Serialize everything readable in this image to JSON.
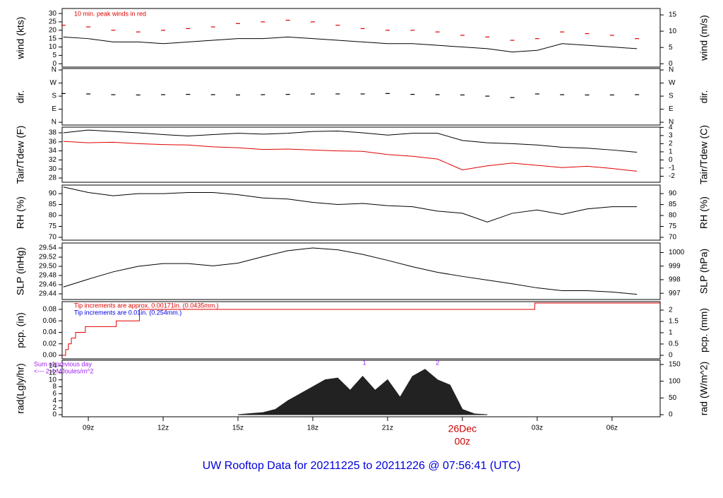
{
  "title": "UW Rooftop Data for 20211225  to  20211226 @ 07:56:41  (UTC)",
  "xaxis": {
    "xlim": [
      7.95,
      31.93
    ],
    "xticks": [
      {
        "value": 9,
        "label": "09z"
      },
      {
        "value": 12,
        "label": "12z"
      },
      {
        "value": 15,
        "label": "15z"
      },
      {
        "value": 18,
        "label": "18z"
      },
      {
        "value": 21,
        "label": "21z"
      },
      {
        "value": 24,
        "label": "00z"
      },
      {
        "value": 27,
        "label": "03z"
      },
      {
        "value": 30,
        "label": "06z"
      }
    ],
    "date_label": "26Dec"
  },
  "chart_data": [
    {
      "type": "line",
      "ylabel": "wind (kts)",
      "y2label": "wind (m/s)",
      "annotation": "10 min. peak winds in red",
      "ylim": [
        -2,
        33
      ],
      "yticks": [
        0,
        5,
        10,
        15,
        20,
        25,
        30
      ],
      "y2lim": [
        -1.03,
        16.97
      ],
      "y2ticks": [
        0,
        5,
        10,
        15
      ],
      "x": [
        8,
        9,
        10,
        11,
        12,
        13,
        14,
        15,
        16,
        17,
        18,
        19,
        20,
        21,
        22,
        23,
        24,
        25,
        26,
        27,
        28,
        29,
        30,
        31
      ],
      "series": [
        {
          "name": "wind",
          "color": "#000000",
          "style": "line",
          "values": [
            16,
            15,
            13,
            13,
            12,
            13,
            14,
            15,
            15,
            16,
            15,
            14,
            13,
            12,
            12,
            11,
            10,
            9,
            7,
            8,
            12,
            11,
            10,
            9
          ]
        },
        {
          "name": "peak",
          "color": "#e00000",
          "style": "dash-points",
          "values": [
            23,
            22,
            20,
            19,
            20,
            21,
            22,
            24,
            25,
            26,
            25,
            23,
            21,
            20,
            20,
            19,
            17,
            16,
            14,
            15,
            19,
            18,
            17,
            15
          ]
        }
      ]
    },
    {
      "type": "line",
      "ylabel": "dir.",
      "y2label": "dir.",
      "ylim": [
        -19,
        370
      ],
      "yticks": [
        {
          "value": 0,
          "label": "N"
        },
        {
          "value": 90,
          "label": "E"
        },
        {
          "value": 180,
          "label": "S"
        },
        {
          "value": 270,
          "label": "W"
        },
        {
          "value": 360,
          "label": "N"
        }
      ],
      "x": [
        8,
        9,
        10,
        11,
        12,
        13,
        14,
        15,
        16,
        17,
        18,
        19,
        20,
        21,
        22,
        23,
        24,
        25,
        26,
        27,
        28,
        29,
        30,
        31
      ],
      "series": [
        {
          "name": "dir",
          "color": "#000000",
          "style": "dash-points",
          "values": [
            198,
            195,
            190,
            188,
            190,
            192,
            190,
            188,
            190,
            192,
            195,
            195,
            195,
            198,
            192,
            190,
            188,
            180,
            170,
            195,
            190,
            188,
            188,
            190
          ]
        }
      ]
    },
    {
      "type": "line",
      "ylabel": "Tair/Tdew (F)",
      "y2label": "Tair/Tdew (C)",
      "ylim": [
        27.06,
        39.25
      ],
      "yticks": [
        28,
        30,
        32,
        34,
        36,
        38
      ],
      "y2lim": [
        -2.74,
        4.03
      ],
      "y2ticks": [
        -2,
        -1,
        0,
        1,
        2,
        3,
        4
      ],
      "x": [
        8,
        9,
        10,
        11,
        12,
        13,
        14,
        15,
        16,
        17,
        18,
        19,
        20,
        21,
        22,
        23,
        24,
        25,
        26,
        27,
        28,
        29,
        30,
        31
      ],
      "series": [
        {
          "name": "Tair",
          "color": "#000000",
          "style": "line",
          "values": [
            38.0,
            38.6,
            38.3,
            38.0,
            37.6,
            37.3,
            37.6,
            37.9,
            37.7,
            37.9,
            38.3,
            38.4,
            38.0,
            37.5,
            37.9,
            37.9,
            36.3,
            35.8,
            35.6,
            35.3,
            34.8,
            34.6,
            34.2,
            33.7
          ]
        },
        {
          "name": "Tdew",
          "color": "#e00000",
          "style": "line",
          "values": [
            36.1,
            35.8,
            35.9,
            35.6,
            35.4,
            35.3,
            34.9,
            34.7,
            34.3,
            34.4,
            34.2,
            34.0,
            33.9,
            33.2,
            32.8,
            32.2,
            29.8,
            30.7,
            31.3,
            30.8,
            30.3,
            30.6,
            30.1,
            29.5
          ]
        }
      ]
    },
    {
      "type": "line",
      "ylabel": "RH (%)",
      "y2label": "RH (%)",
      "ylim": [
        68.7,
        93.9
      ],
      "yticks": [
        70,
        75,
        80,
        85,
        90
      ],
      "x": [
        8,
        9,
        10,
        11,
        12,
        13,
        14,
        15,
        16,
        17,
        18,
        19,
        20,
        21,
        22,
        23,
        24,
        25,
        26,
        27,
        28,
        29,
        30,
        31
      ],
      "series": [
        {
          "name": "RH",
          "color": "#000000",
          "style": "line",
          "values": [
            93,
            90.5,
            89,
            90,
            90,
            90.5,
            90.5,
            89.5,
            88,
            87.5,
            86,
            85,
            85.5,
            84.5,
            84,
            82,
            81,
            77,
            81,
            82.5,
            80.5,
            83,
            84,
            84
          ]
        }
      ]
    },
    {
      "type": "line",
      "ylabel": "SLP (inHg)",
      "y2label": "SLP (hPa)",
      "ylim": [
        29.4277,
        29.5508
      ],
      "yticks": [
        29.44,
        29.46,
        29.48,
        {
          "value": 29.5,
          "label": "29.50"
        },
        29.52,
        29.54
      ],
      "y2lim": [
        996.54,
        1000.7
      ],
      "y2ticks": [
        997,
        998,
        999,
        1000
      ],
      "x": [
        8,
        9,
        10,
        11,
        12,
        13,
        14,
        15,
        16,
        17,
        18,
        19,
        20,
        21,
        22,
        23,
        24,
        25,
        26,
        27,
        28,
        29,
        30,
        31
      ],
      "series": [
        {
          "name": "SLP",
          "color": "#000000",
          "style": "line",
          "values": [
            29.455,
            29.472,
            29.488,
            29.5,
            29.506,
            29.506,
            29.501,
            29.507,
            29.521,
            29.534,
            29.54,
            29.536,
            29.526,
            29.513,
            29.499,
            29.487,
            29.478,
            29.47,
            29.462,
            29.453,
            29.447,
            29.447,
            29.444,
            29.439
          ]
        }
      ]
    },
    {
      "type": "step",
      "ylabel": "pcp. (in)",
      "y2label": "pcp. (mm)",
      "annotations": [
        {
          "text": "Tip increments are approx. 0.00171in. (0.0435mm.)",
          "color": "#e00000"
        },
        {
          "text": "Tip increments are 0.01in. (0.254mm.)",
          "color": "#0000e0"
        }
      ],
      "ylim": [
        -0.0062,
        0.0935
      ],
      "yticks": [
        {
          "value": 0,
          "label": "0.00"
        },
        0.02,
        0.04,
        0.06,
        0.08
      ],
      "y2lim": [
        -0.157,
        2.375
      ],
      "y2ticks": [
        0,
        0.5,
        1,
        1.5,
        2
      ],
      "x": [
        7.95,
        8.09,
        8.2,
        8.32,
        8.49,
        8.88,
        10.12,
        11.05,
        26.9
      ],
      "series": [
        {
          "name": "pcp",
          "color": "#e00000",
          "style": "step",
          "values": [
            0,
            0.01,
            0.02,
            0.03,
            0.04,
            0.05,
            0.06,
            0.08,
            0.091
          ]
        }
      ]
    },
    {
      "type": "area",
      "ylabel": "rad(Lgly/hr)",
      "y2label": "rad (W/m^2)",
      "annotations": [
        {
          "text": "Sum of previous day",
          "color": "#a020f0"
        },
        {
          "text": "<--- 2.4 MJoules/m^2",
          "color": "#a020f0"
        }
      ],
      "markers": [
        {
          "x": 20.07,
          "label": "1"
        },
        {
          "x": 23.0,
          "label": "2"
        }
      ],
      "ylim": [
        -0.6,
        15.6
      ],
      "yticks": [
        0,
        2,
        4,
        6,
        8,
        10,
        12,
        14
      ],
      "y2lim": [
        -6.3,
        162.7
      ],
      "y2ticks": [
        0,
        50,
        100,
        150
      ],
      "x": [
        15,
        15.5,
        16,
        16.5,
        17,
        17.5,
        18,
        18.5,
        19,
        19.5,
        20,
        20.5,
        21,
        21.5,
        22,
        22.5,
        23,
        23.5,
        24,
        24.5,
        25
      ],
      "series": [
        {
          "name": "rad",
          "color": "#222222",
          "style": "area",
          "values": [
            0,
            0.3,
            0.6,
            1.5,
            4,
            6,
            8,
            10,
            10.5,
            7,
            11,
            7,
            10,
            5,
            11,
            13,
            10,
            8.5,
            1.5,
            0.2,
            0
          ]
        }
      ]
    }
  ]
}
